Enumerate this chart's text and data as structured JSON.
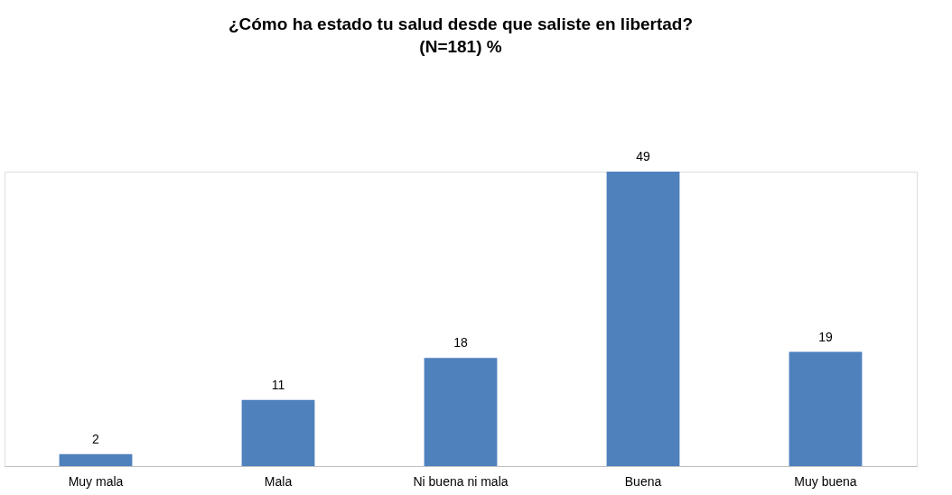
{
  "chart_data": {
    "type": "bar",
    "title": "¿Cómo ha estado tu salud desde que saliste en libertad?",
    "subtitle": "(N=181) %",
    "categories": [
      "Muy mala",
      "Mala",
      "Ni buena ni mala",
      "Buena",
      "Muy buena"
    ],
    "values": [
      2,
      11,
      18,
      49,
      19
    ],
    "color": "#4f81bd",
    "data_labels": true
  }
}
